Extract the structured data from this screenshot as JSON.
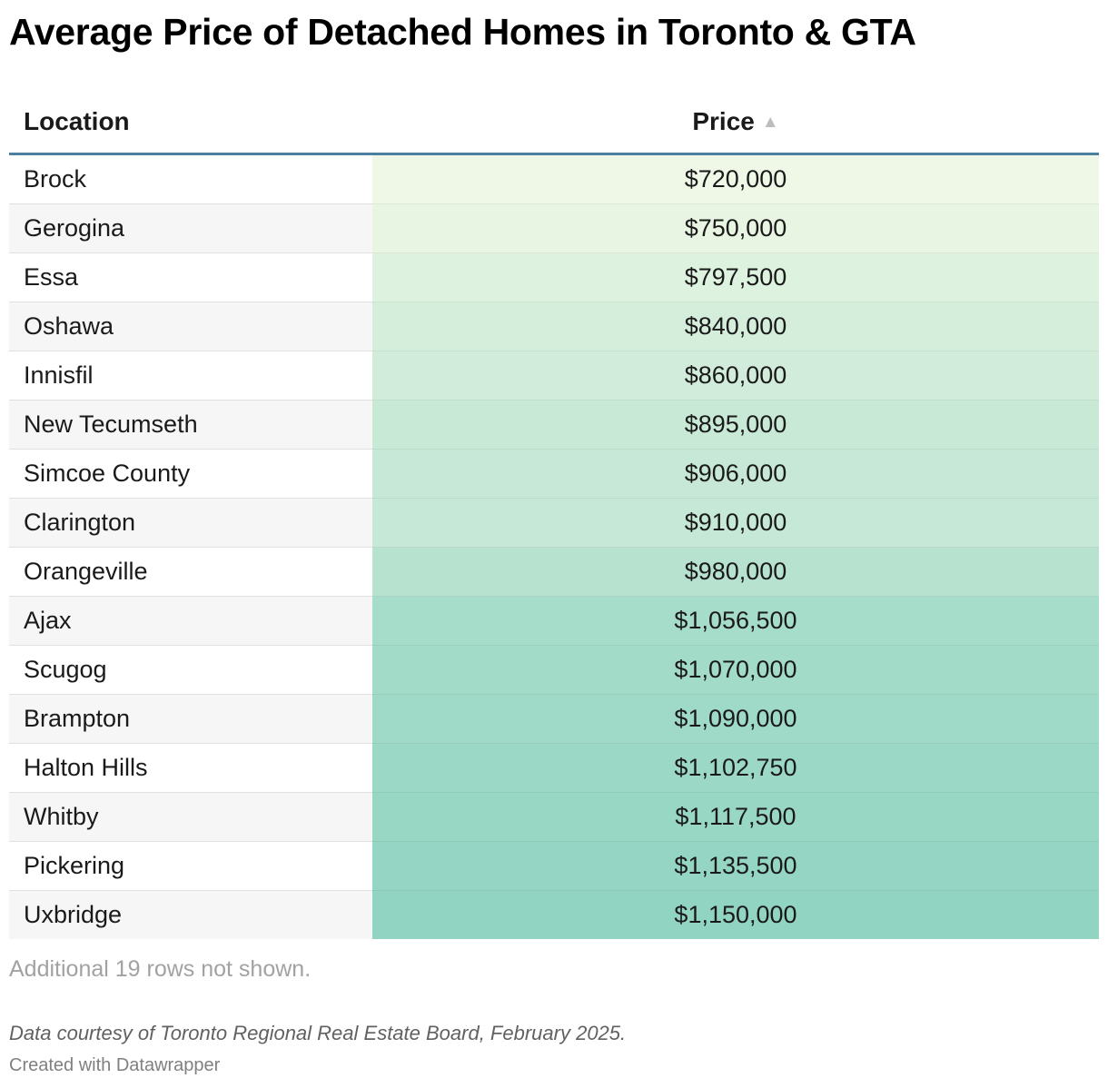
{
  "title": "Average Price of Detached Homes in Toronto & GTA",
  "columns": {
    "location": "Location",
    "price": "Price",
    "sort_icon": "▲"
  },
  "colors": {
    "low": "#eff8e6",
    "high": "#92d4c2",
    "header_rule": "#4d7fa0"
  },
  "chart_data": {
    "type": "table",
    "title": "Average Price of Detached Homes in Toronto & GTA",
    "columns": [
      "Location",
      "Price"
    ],
    "sorted_by": "Price",
    "sort_order": "ascending",
    "rows": [
      {
        "location": "Brock",
        "price": 720000,
        "price_label": "$720,000"
      },
      {
        "location": "Gerogina",
        "price": 750000,
        "price_label": "$750,000"
      },
      {
        "location": "Essa",
        "price": 797500,
        "price_label": "$797,500"
      },
      {
        "location": "Oshawa",
        "price": 840000,
        "price_label": "$840,000"
      },
      {
        "location": "Innisfil",
        "price": 860000,
        "price_label": "$860,000"
      },
      {
        "location": "New Tecumseth",
        "price": 895000,
        "price_label": "$895,000"
      },
      {
        "location": "Simcoe County",
        "price": 906000,
        "price_label": "$906,000"
      },
      {
        "location": "Clarington",
        "price": 910000,
        "price_label": "$910,000"
      },
      {
        "location": "Orangeville",
        "price": 980000,
        "price_label": "$980,000"
      },
      {
        "location": "Ajax",
        "price": 1056500,
        "price_label": "$1,056,500"
      },
      {
        "location": "Scugog",
        "price": 1070000,
        "price_label": "$1,070,000"
      },
      {
        "location": "Brampton",
        "price": 1090000,
        "price_label": "$1,090,000"
      },
      {
        "location": "Halton Hills",
        "price": 1102750,
        "price_label": "$1,102,750"
      },
      {
        "location": "Whitby",
        "price": 1117500,
        "price_label": "$1,117,500"
      },
      {
        "location": "Pickering",
        "price": 1135500,
        "price_label": "$1,135,500"
      },
      {
        "location": "Uxbridge",
        "price": 1150000,
        "price_label": "$1,150,000"
      }
    ]
  },
  "footer": {
    "rows_note": "Additional 19 rows not shown.",
    "source": "Data courtesy of Toronto Regional Real Estate Board, February 2025.",
    "credit": "Created with Datawrapper"
  }
}
